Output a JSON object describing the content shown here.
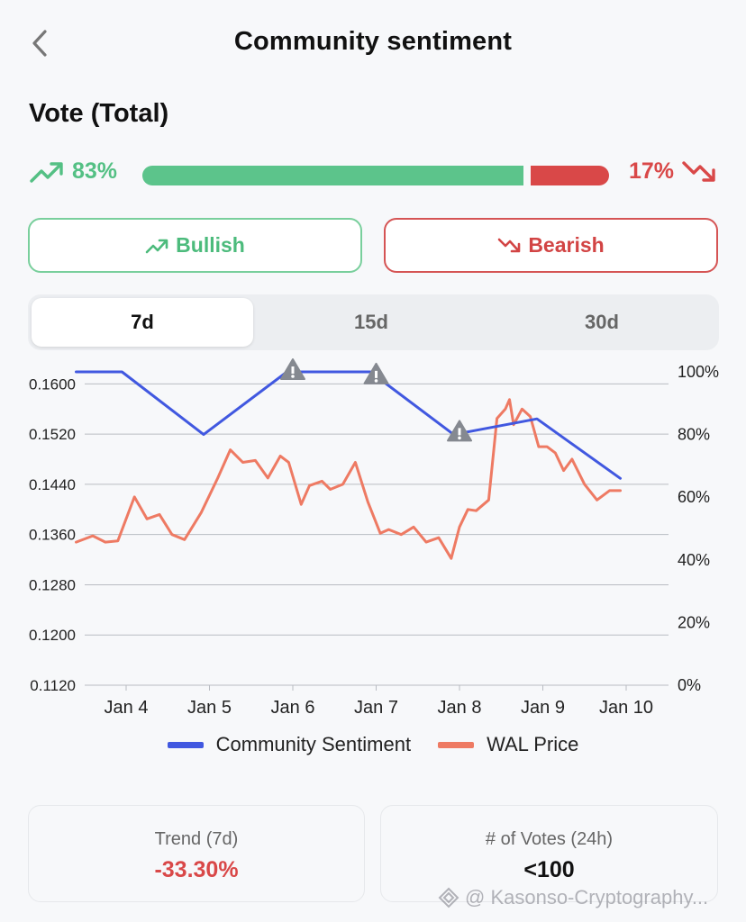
{
  "header": {
    "title": "Community sentiment"
  },
  "vote": {
    "title": "Vote (Total)",
    "bullish_pct_label": "83%",
    "bearish_pct_label": "17%",
    "bullish_fraction": 0.83,
    "bearish_fraction": 0.17,
    "bullish_button": "Bullish",
    "bearish_button": "Bearish"
  },
  "tabs": [
    {
      "label": "7d",
      "active": true
    },
    {
      "label": "15d",
      "active": false
    },
    {
      "label": "30d",
      "active": false
    }
  ],
  "colors": {
    "bull": "#5cc48b",
    "bear": "#d94848",
    "sentiment": "#4158e0",
    "price": "#ee7a63"
  },
  "chart_data": {
    "type": "line",
    "categories": [
      "Jan 4",
      "Jan 5",
      "Jan 6",
      "Jan 7",
      "Jan 8",
      "Jan 9",
      "Jan 10"
    ],
    "y_left": {
      "ticks": [
        "0.1600",
        "0.1520",
        "0.1440",
        "0.1360",
        "0.1280",
        "0.1200",
        "0.1120"
      ],
      "range": [
        0.112,
        0.1645
      ]
    },
    "y_right": {
      "ticks": [
        "100%",
        "80%",
        "60%",
        "40%",
        "20%",
        "0%"
      ],
      "range": [
        0,
        100
      ]
    },
    "series": [
      {
        "name": "Community Sentiment",
        "axis": "right",
        "x": [
          3.4,
          3.95,
          4.93,
          5.93,
          6.93,
          7.93,
          8.93,
          9.93
        ],
        "values": [
          100,
          100,
          80,
          100,
          100,
          80,
          85,
          66
        ]
      },
      {
        "name": "WAL Price",
        "axis": "left",
        "x": [
          3.4,
          3.6,
          3.75,
          3.9,
          4.1,
          4.25,
          4.4,
          4.55,
          4.7,
          4.9,
          5.1,
          5.25,
          5.4,
          5.55,
          5.7,
          5.85,
          5.95,
          6.1,
          6.2,
          6.35,
          6.45,
          6.6,
          6.75,
          6.9,
          7.05,
          7.15,
          7.3,
          7.45,
          7.6,
          7.75,
          7.9,
          8.0,
          8.1,
          8.2,
          8.35,
          8.45,
          8.55,
          8.6,
          8.65,
          8.75,
          8.85,
          8.95,
          9.05,
          9.15,
          9.25,
          9.35,
          9.5,
          9.65,
          9.8,
          9.93
        ],
        "values": [
          0.1348,
          0.1358,
          0.1348,
          0.135,
          0.142,
          0.1385,
          0.1392,
          0.136,
          0.1352,
          0.1395,
          0.145,
          0.1495,
          0.1475,
          0.1478,
          0.145,
          0.1485,
          0.1475,
          0.1408,
          0.1438,
          0.1445,
          0.1432,
          0.144,
          0.1475,
          0.1412,
          0.1362,
          0.1368,
          0.136,
          0.1372,
          0.1348,
          0.1355,
          0.1322,
          0.1372,
          0.14,
          0.1398,
          0.1415,
          0.1545,
          0.156,
          0.1575,
          0.1535,
          0.156,
          0.1548,
          0.15,
          0.15,
          0.149,
          0.1462,
          0.148,
          0.144,
          0.1415,
          0.143,
          0.143
        ]
      }
    ],
    "warning_markers": [
      "Jan 6",
      "Jan 7",
      "Jan 8"
    ]
  },
  "stats": {
    "trend_label": "Trend (7d)",
    "trend_value": "-33.30%",
    "votes_label": "# of Votes (24h)",
    "votes_value": "<100"
  },
  "watermark": "@ Kasonso-Cryptography..."
}
